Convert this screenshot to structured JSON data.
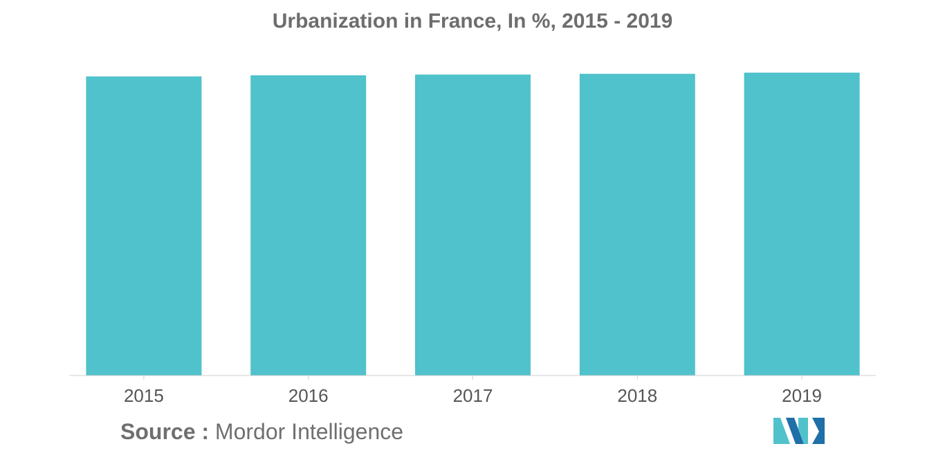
{
  "chart_data": {
    "type": "bar",
    "title": "Urbanization in France, In %, 2015 - 2019",
    "categories": [
      "2015",
      "2016",
      "2017",
      "2018",
      "2019"
    ],
    "values": [
      79.7,
      80.0,
      80.2,
      80.4,
      80.7
    ],
    "xlabel": "",
    "ylabel": "",
    "ylim": [
      0,
      82
    ],
    "grid": false,
    "color": "#50c2cb"
  },
  "source": {
    "prefix": "Source :",
    "name": "Mordor Intelligence"
  },
  "logo_colors": [
    "#1f6fa8",
    "#50c2cb"
  ]
}
